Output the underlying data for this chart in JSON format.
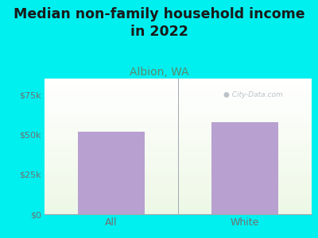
{
  "title": "Median non-family household income\nin 2022",
  "subtitle": "Albion, WA",
  "categories": [
    "All",
    "White"
  ],
  "values": [
    51500,
    57500
  ],
  "bar_color": "#b8a0d0",
  "background_color": "#00efef",
  "yticks": [
    0,
    25000,
    50000,
    75000
  ],
  "ytick_labels": [
    "$0",
    "$25k",
    "$50k",
    "$75k"
  ],
  "ylim": [
    0,
    85000
  ],
  "title_fontsize": 12.5,
  "subtitle_fontsize": 10,
  "subtitle_color": "#5b8a6e",
  "tick_color": "#707070",
  "watermark": "City-Data.com",
  "watermark_color": "#b0b8c0"
}
